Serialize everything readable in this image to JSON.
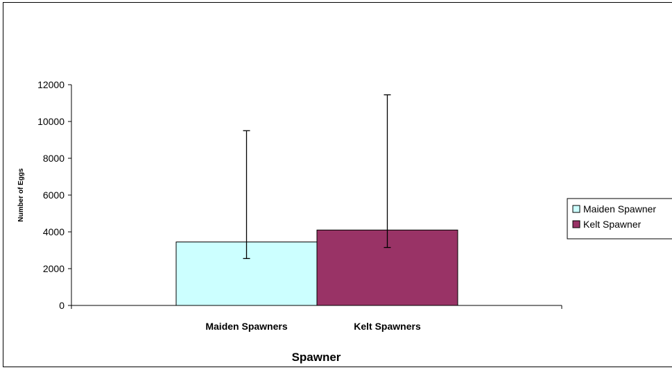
{
  "chart_data": {
    "type": "bar",
    "title": "",
    "xlabel": "Spawner",
    "ylabel": "Number of Eggs",
    "categories": [
      "Maiden Spawners",
      "Kelt Spawners"
    ],
    "series": [
      {
        "name": "Maiden Spawner",
        "values": [
          3450,
          null
        ],
        "error_low": [
          2550,
          null
        ],
        "error_high": [
          9500,
          null
        ],
        "color": "#CCFFFF"
      },
      {
        "name": "Kelt Spawner",
        "values": [
          null,
          4100
        ],
        "error_low": [
          null,
          3150
        ],
        "error_high": [
          null,
          11450
        ],
        "color": "#993366"
      }
    ],
    "yticks": [
      "0",
      "2000",
      "4000",
      "6000",
      "8000",
      "10000",
      "12000"
    ],
    "ylim": [
      0,
      12000
    ],
    "grid": false,
    "legend_position": "right"
  }
}
